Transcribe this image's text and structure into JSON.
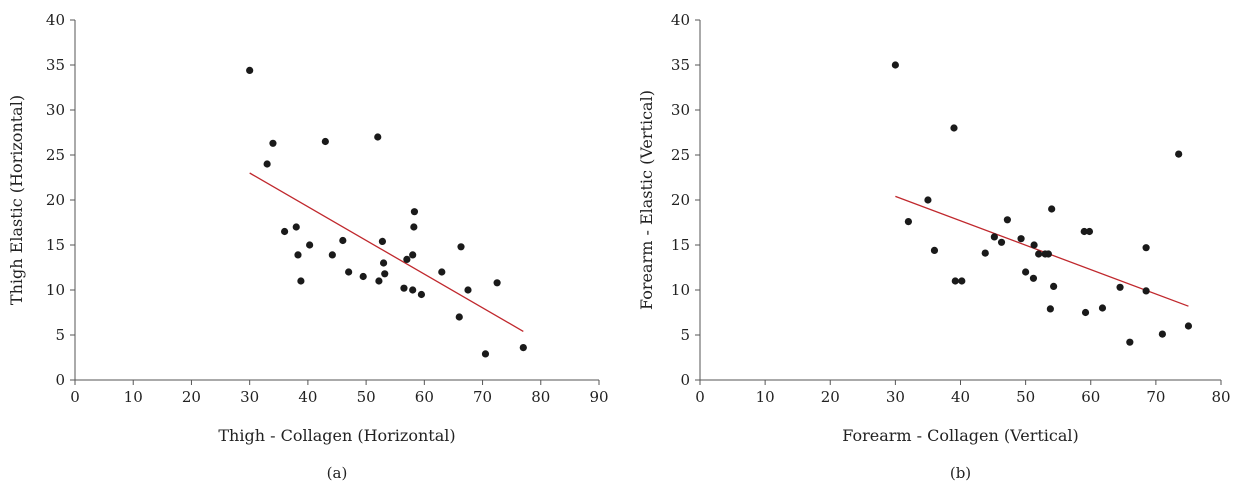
{
  "chart_data": [
    {
      "type": "scatter",
      "panel_label": "(a)",
      "xlabel": "Thigh - Collagen (Horizontal)",
      "ylabel": "Thigh Elastic (Horizontal)",
      "xlim": [
        0,
        90
      ],
      "ylim": [
        0,
        40
      ],
      "xticks": [
        0,
        10,
        20,
        30,
        40,
        50,
        60,
        70,
        80,
        90
      ],
      "yticks": [
        0,
        5,
        10,
        15,
        20,
        25,
        30,
        35,
        40
      ],
      "marker_color": "#1a1a1a",
      "trendline_color": "#c0282d",
      "points": [
        [
          30.0,
          34.4
        ],
        [
          33.0,
          24.0
        ],
        [
          34.0,
          26.3
        ],
        [
          36.0,
          16.5
        ],
        [
          38.0,
          17.0
        ],
        [
          38.3,
          13.9
        ],
        [
          38.8,
          11.0
        ],
        [
          40.3,
          15.0
        ],
        [
          43.0,
          26.5
        ],
        [
          44.2,
          13.9
        ],
        [
          46.0,
          15.5
        ],
        [
          47.0,
          12.0
        ],
        [
          49.5,
          11.5
        ],
        [
          52.0,
          27.0
        ],
        [
          52.2,
          11.0
        ],
        [
          52.8,
          15.4
        ],
        [
          53.0,
          13.0
        ],
        [
          53.2,
          11.8
        ],
        [
          56.5,
          10.2
        ],
        [
          57.0,
          13.4
        ],
        [
          58.0,
          10.0
        ],
        [
          58.2,
          17.0
        ],
        [
          58.3,
          18.7
        ],
        [
          58.0,
          13.9
        ],
        [
          59.5,
          9.5
        ],
        [
          63.0,
          12.0
        ],
        [
          66.0,
          7.0
        ],
        [
          66.3,
          14.8
        ],
        [
          67.5,
          10.0
        ],
        [
          70.5,
          2.9
        ],
        [
          72.5,
          10.8
        ],
        [
          77.0,
          3.6
        ]
      ],
      "trendline": {
        "x": [
          30,
          77
        ],
        "y": [
          23.0,
          5.4
        ]
      }
    },
    {
      "type": "scatter",
      "panel_label": "(b)",
      "xlabel": "Forearm - Collagen (Vertical)",
      "ylabel": "Forearm - Elastic (Vertical)",
      "xlim": [
        0,
        80
      ],
      "ylim": [
        0,
        40
      ],
      "xticks": [
        0,
        10,
        20,
        30,
        40,
        50,
        60,
        70,
        80
      ],
      "yticks": [
        0,
        5,
        10,
        15,
        20,
        25,
        30,
        35,
        40
      ],
      "marker_color": "#1a1a1a",
      "trendline_color": "#c0282d",
      "points": [
        [
          30.0,
          35.0
        ],
        [
          32.0,
          17.6
        ],
        [
          35.0,
          20.0
        ],
        [
          36.0,
          14.4
        ],
        [
          39.0,
          28.0
        ],
        [
          39.2,
          11.0
        ],
        [
          40.2,
          11.0
        ],
        [
          43.8,
          14.1
        ],
        [
          45.2,
          15.9
        ],
        [
          46.3,
          15.3
        ],
        [
          47.2,
          17.8
        ],
        [
          49.3,
          15.7
        ],
        [
          50.0,
          12.0
        ],
        [
          51.2,
          11.3
        ],
        [
          51.3,
          15.0
        ],
        [
          52.0,
          14.0
        ],
        [
          53.0,
          14.0
        ],
        [
          53.5,
          14.0
        ],
        [
          53.8,
          7.9
        ],
        [
          54.0,
          19.0
        ],
        [
          54.3,
          10.4
        ],
        [
          59.0,
          16.5
        ],
        [
          59.2,
          7.5
        ],
        [
          59.8,
          16.5
        ],
        [
          61.8,
          8.0
        ],
        [
          64.5,
          10.3
        ],
        [
          66.0,
          4.2
        ],
        [
          68.5,
          14.7
        ],
        [
          68.5,
          9.9
        ],
        [
          71.0,
          5.1
        ],
        [
          73.5,
          25.1
        ],
        [
          75.0,
          6.0
        ]
      ],
      "trendline": {
        "x": [
          30,
          75
        ],
        "y": [
          20.4,
          8.2
        ]
      }
    }
  ]
}
